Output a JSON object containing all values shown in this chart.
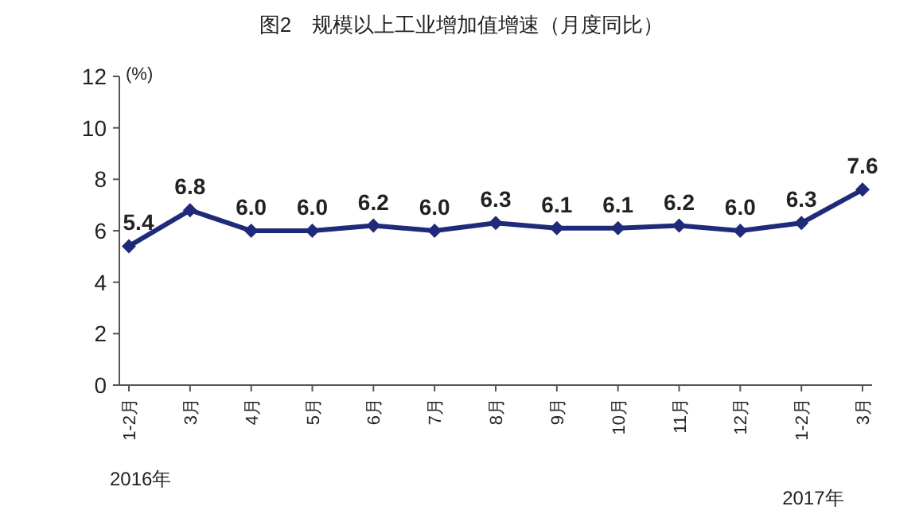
{
  "chart_data": {
    "type": "line",
    "title": "图2　规模以上工业增加值增速（月度同比）",
    "ylabel": "(%)",
    "categories": [
      "1-2月",
      "3月",
      "4月",
      "5月",
      "6月",
      "7月",
      "8月",
      "9月",
      "10月",
      "11月",
      "12月",
      "1-2月",
      "3月"
    ],
    "series": [
      {
        "color": "#1f2a7a",
        "values": [
          5.4,
          6.8,
          6.0,
          6.0,
          6.2,
          6.0,
          6.3,
          6.1,
          6.1,
          6.2,
          6.0,
          6.3,
          7.6
        ],
        "value_labels": [
          "5.4",
          "6.8",
          "6.0",
          "6.0",
          "6.2",
          "6.0",
          "6.3",
          "6.1",
          "6.1",
          "6.2",
          "6.0",
          "6.3",
          "7.6"
        ]
      }
    ],
    "ylim": [
      0,
      12
    ],
    "yticks": [
      0,
      2,
      4,
      6,
      8,
      10,
      12
    ],
    "marker": "diamond",
    "line_style": "solid",
    "annotations": [
      "2016年",
      "2017年"
    ]
  }
}
